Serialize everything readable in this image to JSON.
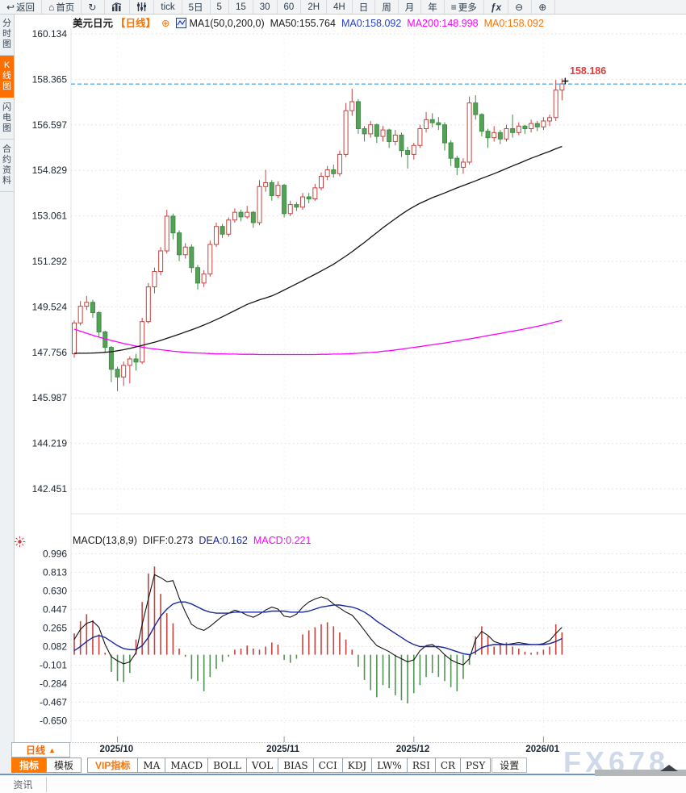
{
  "toolbar": {
    "items": [
      {
        "name": "back",
        "icon": "back-arrow",
        "label": "返回"
      },
      {
        "name": "home",
        "icon": "home",
        "label": "首页"
      },
      {
        "name": "refresh",
        "icon": "refresh",
        "label": ""
      },
      {
        "name": "chart-type",
        "icon": "bar-chart",
        "label": ""
      },
      {
        "name": "indicator-settings",
        "icon": "sliders",
        "label": ""
      },
      {
        "name": "tick",
        "icon": "",
        "label": "tick"
      },
      {
        "name": "5d",
        "icon": "",
        "label": "5日"
      },
      {
        "name": "5",
        "icon": "",
        "label": "5"
      },
      {
        "name": "15",
        "icon": "",
        "label": "15"
      },
      {
        "name": "30",
        "icon": "",
        "label": "30"
      },
      {
        "name": "60",
        "icon": "",
        "label": "60"
      },
      {
        "name": "2h",
        "icon": "",
        "label": "2H"
      },
      {
        "name": "4h",
        "icon": "",
        "label": "4H"
      },
      {
        "name": "day",
        "icon": "",
        "label": "日"
      },
      {
        "name": "week",
        "icon": "",
        "label": "周"
      },
      {
        "name": "month",
        "icon": "",
        "label": "月"
      },
      {
        "name": "year",
        "icon": "",
        "label": "年"
      },
      {
        "name": "more",
        "icon": "menu",
        "label": "更多"
      },
      {
        "name": "fx",
        "icon": "fx",
        "label": ""
      },
      {
        "name": "zoom-out",
        "icon": "zoom-out",
        "label": ""
      },
      {
        "name": "zoom-in",
        "icon": "zoom-in",
        "label": ""
      }
    ]
  },
  "sidebar": {
    "tabs": [
      {
        "label": "分时图",
        "active": false
      },
      {
        "label": "K线图",
        "active": true
      },
      {
        "label": "闪电图",
        "active": false
      },
      {
        "label": "合约资料",
        "active": false
      }
    ],
    "news_tab": "资讯"
  },
  "price_pane": {
    "symbol": "美元日元",
    "period_tag": "【日线】",
    "add_icon": "⊕",
    "ma_settings": "MA1(50,0,200,0)",
    "ma50_label": "MA50:155.764",
    "ma0_blue_label": "MA0:158.092",
    "ma200_label": "MA200:148.998",
    "ma0_orange_label": "MA0:158.092",
    "last_price_label": "158.186",
    "axis_ticks": [
      "160.134",
      "158.365",
      "156.597",
      "154.829",
      "153.061",
      "151.292",
      "149.524",
      "147.756",
      "145.987",
      "144.219",
      "142.451"
    ]
  },
  "macd_pane": {
    "title": "MACD(13,8,9)",
    "diff_label": "DIFF:0.273",
    "dea_label": "DEA:0.162",
    "macd_label": "MACD:0.221",
    "axis_ticks": [
      "0.996",
      "0.813",
      "0.630",
      "0.447",
      "0.265",
      "0.082",
      "-0.101",
      "-0.284",
      "-0.467",
      "-0.650"
    ]
  },
  "xaxis": {
    "labels": [
      "2025/10",
      "2025/11",
      "2025/12",
      "2026/01"
    ],
    "candle_indices": [
      7,
      34,
      55,
      76
    ]
  },
  "period_button": {
    "label": "日线",
    "arrow": "▲"
  },
  "bottom_tabs": [
    {
      "label": "指标",
      "style": "active"
    },
    {
      "label": "模板",
      "style": ""
    },
    {
      "label": "VIP指标",
      "style": "vip"
    },
    {
      "label": "MA",
      "style": "ind"
    },
    {
      "label": "MACD",
      "style": "ind"
    },
    {
      "label": "BOLL",
      "style": "ind"
    },
    {
      "label": "VOL",
      "style": "ind"
    },
    {
      "label": "BIAS",
      "style": "ind"
    },
    {
      "label": "CCI",
      "style": "ind"
    },
    {
      "label": "KDJ",
      "style": "ind"
    },
    {
      "label": "LW%",
      "style": "ind"
    },
    {
      "label": "RSI",
      "style": "ind"
    },
    {
      "label": "CR",
      "style": "ind"
    },
    {
      "label": "PSY",
      "style": "ind"
    },
    {
      "label": "设置",
      "style": "set"
    }
  ],
  "watermark": "FX678",
  "colors": {
    "up": "#c5433f",
    "down_fill": "#57a05a",
    "down_stroke": "#3c8d42",
    "ma50": "#141414",
    "ma200": "#ff00ff",
    "diff": "#141414",
    "dea": "#16279e",
    "grid": "#e6dada",
    "dashed_line": "#2b87d9",
    "flag": "#e23a3a",
    "accent_orange": "#ff6f00",
    "axis_text": "#1b2430"
  },
  "chart_data": {
    "type": "candlestick+macd",
    "title": "美元日元 日线 (USD/JPY daily)",
    "price_axis_range": [
      142.451,
      160.134
    ],
    "macd_axis_range": [
      -0.65,
      0.996
    ],
    "last_price": 158.186,
    "months": {
      "labels": [
        "2025/10",
        "2025/11",
        "2025/12",
        "2026/01"
      ],
      "at_candle": [
        7,
        34,
        55,
        76
      ]
    },
    "candles": [
      [
        147.7,
        149.0,
        147.55,
        148.9
      ],
      [
        148.9,
        149.75,
        148.8,
        149.55
      ],
      [
        149.55,
        149.95,
        149.4,
        149.7
      ],
      [
        149.7,
        149.8,
        149.1,
        149.3
      ],
      [
        149.3,
        149.35,
        148.35,
        148.55
      ],
      [
        148.55,
        148.6,
        147.75,
        147.95
      ],
      [
        147.95,
        148.0,
        146.6,
        147.1
      ],
      [
        147.1,
        147.2,
        146.25,
        146.8
      ],
      [
        146.8,
        147.4,
        146.45,
        147.25
      ],
      [
        147.25,
        147.6,
        146.55,
        147.5
      ],
      [
        147.5,
        147.7,
        147.05,
        147.38
      ],
      [
        147.38,
        149.1,
        147.3,
        148.95
      ],
      [
        148.95,
        150.45,
        148.88,
        150.3
      ],
      [
        150.3,
        151.05,
        150.05,
        150.9
      ],
      [
        150.9,
        151.85,
        150.75,
        151.7
      ],
      [
        151.7,
        153.3,
        151.6,
        153.05
      ],
      [
        153.05,
        153.15,
        152.15,
        152.4
      ],
      [
        152.4,
        152.5,
        151.3,
        151.55
      ],
      [
        151.55,
        152.0,
        151.4,
        151.85
      ],
      [
        151.85,
        151.95,
        150.85,
        151.05
      ],
      [
        151.05,
        151.15,
        150.2,
        150.45
      ],
      [
        150.45,
        150.95,
        150.3,
        150.8
      ],
      [
        150.8,
        152.1,
        150.7,
        151.95
      ],
      [
        151.95,
        152.8,
        151.85,
        152.65
      ],
      [
        152.65,
        152.75,
        152.2,
        152.35
      ],
      [
        152.35,
        153.0,
        152.25,
        152.9
      ],
      [
        152.9,
        153.35,
        152.8,
        153.2
      ],
      [
        153.2,
        153.3,
        152.85,
        153.02
      ],
      [
        153.02,
        153.45,
        152.95,
        153.2
      ],
      [
        153.2,
        153.25,
        152.6,
        152.8
      ],
      [
        152.8,
        154.45,
        152.7,
        154.2
      ],
      [
        154.2,
        154.85,
        154.0,
        154.35
      ],
      [
        154.35,
        154.45,
        153.65,
        153.85
      ],
      [
        153.85,
        154.4,
        153.75,
        154.25
      ],
      [
        154.25,
        154.3,
        153.0,
        153.15
      ],
      [
        153.15,
        153.65,
        153.05,
        153.5
      ],
      [
        153.5,
        153.6,
        153.25,
        153.4
      ],
      [
        153.4,
        153.95,
        153.3,
        153.8
      ],
      [
        153.8,
        153.95,
        153.55,
        153.72
      ],
      [
        153.72,
        154.3,
        153.65,
        154.15
      ],
      [
        154.15,
        154.75,
        154.05,
        154.6
      ],
      [
        154.6,
        155.0,
        154.45,
        154.85
      ],
      [
        154.85,
        155.05,
        154.55,
        154.7
      ],
      [
        154.7,
        155.6,
        154.6,
        155.45
      ],
      [
        155.45,
        157.45,
        155.35,
        157.15
      ],
      [
        157.15,
        158.0,
        156.95,
        157.5
      ],
      [
        157.5,
        157.6,
        156.25,
        156.45
      ],
      [
        156.45,
        156.55,
        155.95,
        156.25
      ],
      [
        156.25,
        156.75,
        156.1,
        156.6
      ],
      [
        156.6,
        156.65,
        155.9,
        156.15
      ],
      [
        156.15,
        156.55,
        155.95,
        156.4
      ],
      [
        156.4,
        156.45,
        155.7,
        155.95
      ],
      [
        155.95,
        156.4,
        155.8,
        156.2
      ],
      [
        156.2,
        156.3,
        155.35,
        155.6
      ],
      [
        155.6,
        155.75,
        154.9,
        155.45
      ],
      [
        155.45,
        155.9,
        155.25,
        155.8
      ],
      [
        155.8,
        156.6,
        155.7,
        156.45
      ],
      [
        156.45,
        157.1,
        156.3,
        156.8
      ],
      [
        156.8,
        157.05,
        156.5,
        156.68
      ],
      [
        156.68,
        156.9,
        156.4,
        156.6
      ],
      [
        156.6,
        156.7,
        155.6,
        155.9
      ],
      [
        155.9,
        156.0,
        155.0,
        155.3
      ],
      [
        155.3,
        155.4,
        154.65,
        154.95
      ],
      [
        154.95,
        155.3,
        154.7,
        155.15
      ],
      [
        155.15,
        157.7,
        155.05,
        157.45
      ],
      [
        157.45,
        157.75,
        156.8,
        157.0
      ],
      [
        157.0,
        157.05,
        156.15,
        156.35
      ],
      [
        156.35,
        156.45,
        155.7,
        156.1
      ],
      [
        156.1,
        156.55,
        155.95,
        156.3
      ],
      [
        156.3,
        156.4,
        155.85,
        156.05
      ],
      [
        156.05,
        156.6,
        155.95,
        156.45
      ],
      [
        156.45,
        157.0,
        156.1,
        156.3
      ],
      [
        156.3,
        156.7,
        156.2,
        156.55
      ],
      [
        156.55,
        156.6,
        156.25,
        156.45
      ],
      [
        156.45,
        156.8,
        156.3,
        156.65
      ],
      [
        156.65,
        156.75,
        156.35,
        156.52
      ],
      [
        156.52,
        156.9,
        156.4,
        156.75
      ],
      [
        156.75,
        157.0,
        156.55,
        156.88
      ],
      [
        156.88,
        158.35,
        156.75,
        157.95
      ],
      [
        157.95,
        158.4,
        157.55,
        158.19
      ]
    ],
    "ma50": [
      147.72,
      147.72,
      147.72,
      147.73,
      147.74,
      147.76,
      147.78,
      147.82,
      147.86,
      147.91,
      147.97,
      148.03,
      148.09,
      148.15,
      148.22,
      148.3,
      148.38,
      148.46,
      148.55,
      148.63,
      148.72,
      148.82,
      148.92,
      149.03,
      149.14,
      149.26,
      149.38,
      149.5,
      149.62,
      149.71,
      149.8,
      149.87,
      149.95,
      150.06,
      150.18,
      150.3,
      150.42,
      150.54,
      150.67,
      150.79,
      150.92,
      151.05,
      151.18,
      151.34,
      151.5,
      151.67,
      151.85,
      152.03,
      152.22,
      152.41,
      152.6,
      152.78,
      152.95,
      153.12,
      153.28,
      153.42,
      153.55,
      153.66,
      153.77,
      153.86,
      153.95,
      154.05,
      154.15,
      154.24,
      154.33,
      154.42,
      154.52,
      154.61,
      154.7,
      154.8,
      154.9,
      155.0,
      155.1,
      155.2,
      155.3,
      155.39,
      155.48,
      155.57,
      155.67,
      155.76
    ],
    "ma200": [
      148.66,
      148.58,
      148.5,
      148.42,
      148.35,
      148.28,
      148.22,
      148.16,
      148.1,
      148.05,
      148.0,
      147.96,
      147.92,
      147.89,
      147.86,
      147.83,
      147.8,
      147.78,
      147.76,
      147.74,
      147.73,
      147.72,
      147.71,
      147.7,
      147.7,
      147.69,
      147.69,
      147.68,
      147.68,
      147.68,
      147.67,
      147.67,
      147.67,
      147.67,
      147.67,
      147.67,
      147.67,
      147.67,
      147.67,
      147.67,
      147.68,
      147.68,
      147.69,
      147.69,
      147.7,
      147.71,
      147.72,
      147.74,
      147.75,
      147.77,
      147.8,
      147.82,
      147.85,
      147.88,
      147.92,
      147.95,
      147.98,
      148.02,
      148.05,
      148.09,
      148.12,
      148.16,
      148.2,
      148.24,
      148.28,
      148.32,
      148.36,
      148.41,
      148.45,
      148.49,
      148.54,
      148.58,
      148.62,
      148.67,
      148.72,
      148.77,
      148.82,
      148.88,
      148.94,
      149.0
    ],
    "macd": {
      "diff": [
        0.15,
        0.25,
        0.31,
        0.33,
        0.27,
        0.1,
        -0.02,
        -0.06,
        -0.09,
        -0.07,
        0.02,
        0.3,
        0.55,
        0.79,
        0.76,
        0.72,
        0.73,
        0.56,
        0.42,
        0.3,
        0.26,
        0.24,
        0.28,
        0.33,
        0.38,
        0.41,
        0.44,
        0.42,
        0.39,
        0.37,
        0.4,
        0.44,
        0.47,
        0.45,
        0.38,
        0.37,
        0.4,
        0.47,
        0.52,
        0.55,
        0.57,
        0.55,
        0.5,
        0.46,
        0.42,
        0.39,
        0.32,
        0.24,
        0.16,
        0.09,
        0.06,
        0.03,
        -0.01,
        -0.04,
        -0.07,
        -0.05,
        0.04,
        0.09,
        0.1,
        0.06,
        0.0,
        -0.05,
        -0.08,
        -0.1,
        -0.04,
        0.15,
        0.23,
        0.19,
        0.13,
        0.11,
        0.1,
        0.11,
        0.12,
        0.11,
        0.1,
        0.1,
        0.11,
        0.14,
        0.21,
        0.27
      ],
      "dea": [
        0.04,
        0.08,
        0.13,
        0.17,
        0.19,
        0.17,
        0.13,
        0.09,
        0.06,
        0.05,
        0.05,
        0.09,
        0.17,
        0.28,
        0.38,
        0.45,
        0.5,
        0.52,
        0.52,
        0.5,
        0.47,
        0.44,
        0.42,
        0.41,
        0.41,
        0.41,
        0.42,
        0.42,
        0.42,
        0.42,
        0.42,
        0.42,
        0.43,
        0.43,
        0.43,
        0.42,
        0.42,
        0.42,
        0.43,
        0.45,
        0.47,
        0.48,
        0.49,
        0.49,
        0.48,
        0.47,
        0.45,
        0.42,
        0.38,
        0.33,
        0.29,
        0.25,
        0.21,
        0.17,
        0.13,
        0.1,
        0.08,
        0.08,
        0.08,
        0.08,
        0.07,
        0.05,
        0.03,
        0.01,
        0.0,
        0.03,
        0.07,
        0.09,
        0.1,
        0.1,
        0.1,
        0.1,
        0.1,
        0.1,
        0.1,
        0.1,
        0.1,
        0.11,
        0.13,
        0.16
      ],
      "hist": [
        0.21,
        0.33,
        0.4,
        0.34,
        0.2,
        0.02,
        -0.17,
        -0.26,
        -0.27,
        -0.18,
        0.15,
        0.52,
        0.8,
        0.87,
        0.6,
        0.41,
        0.31,
        0.06,
        -0.02,
        -0.24,
        -0.26,
        -0.36,
        -0.22,
        -0.14,
        -0.07,
        -0.02,
        0.05,
        0.06,
        0.09,
        0.06,
        0.05,
        0.08,
        0.12,
        0.1,
        -0.05,
        -0.08,
        -0.04,
        0.2,
        0.24,
        0.27,
        0.3,
        0.32,
        0.28,
        0.22,
        0.15,
        0.05,
        -0.12,
        -0.25,
        -0.35,
        -0.42,
        -0.3,
        -0.33,
        -0.4,
        -0.45,
        -0.48,
        -0.38,
        -0.3,
        -0.22,
        -0.18,
        -0.22,
        -0.26,
        -0.32,
        -0.36,
        -0.24,
        -0.1,
        0.18,
        0.28,
        0.18,
        0.08,
        0.1,
        0.12,
        0.08,
        0.06,
        0.03,
        0.02,
        0.03,
        0.05,
        0.08,
        0.3,
        0.22
      ]
    }
  }
}
